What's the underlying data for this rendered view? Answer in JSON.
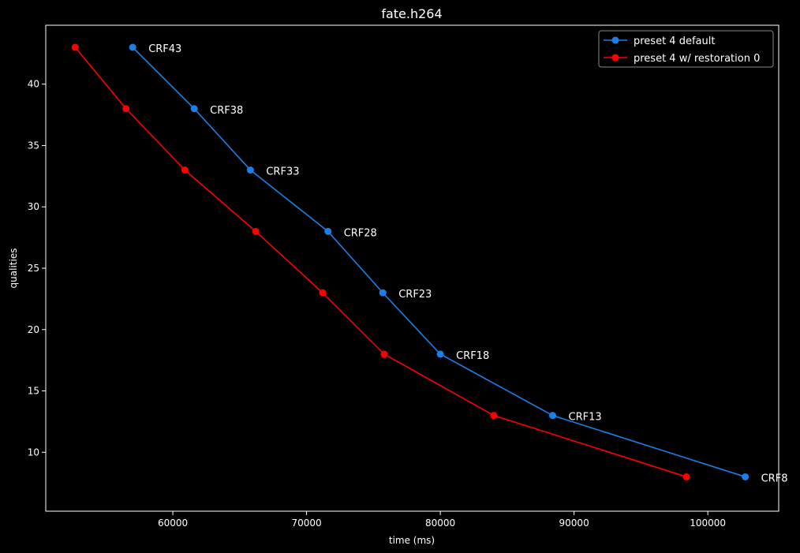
{
  "chart_data": {
    "type": "line",
    "title": "fate.h264",
    "xlabel": "time (ms)",
    "ylabel": "qualities",
    "xlim": [
      50500,
      105300
    ],
    "ylim": [
      5.2,
      44.8
    ],
    "xticks": [
      60000,
      70000,
      80000,
      90000,
      100000
    ],
    "yticks": [
      10,
      15,
      20,
      25,
      30,
      35,
      40
    ],
    "grid": false,
    "legend_position": "top-right",
    "series": [
      {
        "name": "preset 4 default",
        "color": "#1a7fe6",
        "x": [
          57000,
          61600,
          65800,
          71600,
          75700,
          80000,
          88400,
          102800
        ],
        "y": [
          43,
          38,
          33,
          28,
          23,
          18,
          13,
          8
        ]
      },
      {
        "name": "preset 4 w/ restoration 0",
        "color": "#ff0000",
        "x": [
          52700,
          56500,
          60900,
          66200,
          71200,
          75800,
          84000,
          98400
        ],
        "y": [
          43,
          38,
          33,
          28,
          23,
          18,
          13,
          8
        ]
      }
    ],
    "annotations": [
      {
        "text": "CRF43",
        "x": 57000,
        "y": 43
      },
      {
        "text": "CRF38",
        "x": 61600,
        "y": 38
      },
      {
        "text": "CRF33",
        "x": 65800,
        "y": 33
      },
      {
        "text": "CRF28",
        "x": 71600,
        "y": 28
      },
      {
        "text": "CRF23",
        "x": 75700,
        "y": 23
      },
      {
        "text": "CRF18",
        "x": 80000,
        "y": 18
      },
      {
        "text": "CRF13",
        "x": 88400,
        "y": 13
      },
      {
        "text": "CRF8",
        "x": 102800,
        "y": 8
      }
    ]
  }
}
